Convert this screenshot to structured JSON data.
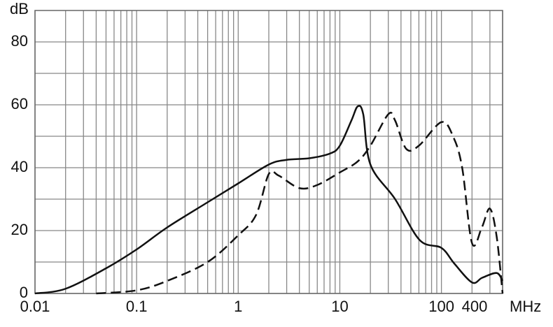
{
  "chart_data": {
    "type": "line",
    "x_scale": "log",
    "y_label": "dB",
    "x_label": "MHz",
    "xlim": [
      0.01,
      400
    ],
    "xticks": [
      0.01,
      0.1,
      1,
      10,
      100,
      400
    ],
    "xminor": [
      0.02,
      0.03,
      0.04,
      0.05,
      0.06,
      0.07,
      0.08,
      0.09,
      0.2,
      0.3,
      0.4,
      0.5,
      0.6,
      0.7,
      0.8,
      0.9,
      2,
      3,
      4,
      5,
      6,
      7,
      8,
      9,
      20,
      30,
      40,
      50,
      60,
      70,
      80,
      90,
      200,
      300
    ],
    "ylim": [
      0,
      90
    ],
    "yticks": [
      0,
      20,
      40,
      60,
      80
    ],
    "yminor": [
      10,
      30,
      50,
      70
    ],
    "grid": true,
    "series": [
      {
        "color": "#111111",
        "dash": "solid",
        "x": [
          0.01,
          0.02,
          0.05,
          0.1,
          0.2,
          0.5,
          1,
          2,
          3,
          5,
          8,
          10,
          13,
          15,
          17,
          20,
          35,
          61,
          100,
          134,
          200,
          252,
          350,
          400
        ],
        "values": [
          0,
          1.5,
          8,
          14,
          21,
          29,
          35,
          41,
          42.5,
          43,
          44.5,
          47,
          55,
          59.5,
          57,
          41,
          30,
          17,
          14.5,
          9.5,
          3.5,
          5,
          6.5,
          4
        ]
      },
      {
        "color": "#111111",
        "dash": "dashed",
        "x": [
          0.04,
          0.1,
          0.2,
          0.5,
          1,
          1.5,
          2,
          2.5,
          4,
          6,
          10,
          15,
          20,
          30,
          35,
          45,
          60,
          100,
          130,
          160,
          200,
          250,
          300,
          350,
          400
        ],
        "values": [
          0,
          1,
          4,
          10,
          18.5,
          25,
          38,
          37.5,
          33.5,
          34.5,
          38.5,
          42,
          47,
          57,
          55,
          46,
          47,
          54.5,
          50,
          40,
          16,
          21,
          27,
          18,
          0
        ]
      }
    ]
  }
}
